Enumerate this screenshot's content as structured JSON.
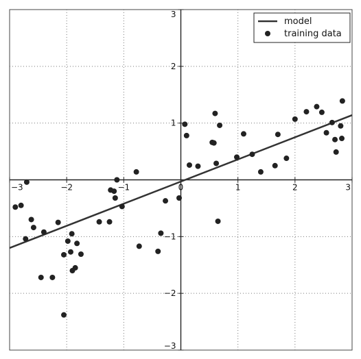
{
  "chart_data": {
    "type": "scatter",
    "title": "",
    "xlabel": "",
    "ylabel": "",
    "xlim": [
      -3,
      3
    ],
    "ylim": [
      -3,
      3
    ],
    "grid": true,
    "grid_style": "dotted",
    "spines": "centered",
    "x_ticks": [
      -3,
      -2,
      -1,
      0,
      1,
      2,
      3
    ],
    "y_ticks": [
      -3,
      -2,
      -1,
      0,
      1,
      2,
      3
    ],
    "x_tick_labels": [
      "−3",
      "−2",
      "−1",
      "0",
      "1",
      "2",
      "3"
    ],
    "y_tick_labels": [
      "−3",
      "−2",
      "−1",
      "",
      "1",
      "2",
      "3"
    ],
    "legend": {
      "position": "top-right",
      "entries": [
        {
          "label": "model",
          "type": "line"
        },
        {
          "label": "training data",
          "type": "marker"
        }
      ]
    },
    "series": [
      {
        "name": "model",
        "type": "line",
        "color": "#333333",
        "x": [
          -3,
          3
        ],
        "y": [
          -1.2,
          1.14
        ]
      },
      {
        "name": "training data",
        "type": "scatter",
        "color": "#222222",
        "points": [
          [
            -2.9,
            -0.48
          ],
          [
            -2.8,
            -0.45
          ],
          [
            -2.7,
            -0.04
          ],
          [
            -2.72,
            -1.04
          ],
          [
            -2.62,
            -0.7
          ],
          [
            -2.58,
            -0.84
          ],
          [
            -2.45,
            -1.72
          ],
          [
            -2.4,
            -0.92
          ],
          [
            -2.25,
            -1.72
          ],
          [
            -2.15,
            -0.75
          ],
          [
            -2.05,
            -1.32
          ],
          [
            -1.98,
            -1.08
          ],
          [
            -1.93,
            -1.27
          ],
          [
            -1.91,
            -0.95
          ],
          [
            -1.9,
            -1.6
          ],
          [
            -1.85,
            -1.55
          ],
          [
            -1.82,
            -1.12
          ],
          [
            -1.75,
            -1.31
          ],
          [
            -2.05,
            -2.38
          ],
          [
            -1.43,
            -0.74
          ],
          [
            -1.25,
            -0.74
          ],
          [
            -1.23,
            -0.18
          ],
          [
            -1.17,
            -0.2
          ],
          [
            -1.15,
            -0.32
          ],
          [
            -1.12,
            0.0
          ],
          [
            -1.03,
            -0.47
          ],
          [
            -0.78,
            0.14
          ],
          [
            -0.73,
            -1.17
          ],
          [
            -0.4,
            -1.26
          ],
          [
            -0.35,
            -0.94
          ],
          [
            -0.27,
            -0.37
          ],
          [
            -0.03,
            -0.32
          ],
          [
            0.07,
            0.98
          ],
          [
            0.1,
            0.78
          ],
          [
            0.15,
            0.26
          ],
          [
            0.3,
            0.24
          ],
          [
            0.55,
            0.66
          ],
          [
            0.58,
            0.65
          ],
          [
            0.6,
            1.17
          ],
          [
            0.62,
            0.29
          ],
          [
            0.65,
            -0.73
          ],
          [
            0.68,
            0.96
          ],
          [
            0.98,
            0.4
          ],
          [
            1.1,
            0.81
          ],
          [
            1.25,
            0.45
          ],
          [
            1.4,
            0.14
          ],
          [
            1.65,
            0.25
          ],
          [
            1.7,
            0.8
          ],
          [
            1.85,
            0.38
          ],
          [
            2.0,
            1.07
          ],
          [
            2.2,
            1.2
          ],
          [
            2.38,
            1.29
          ],
          [
            2.47,
            1.19
          ],
          [
            2.55,
            0.83
          ],
          [
            2.65,
            1.01
          ],
          [
            2.7,
            0.71
          ],
          [
            2.72,
            0.49
          ],
          [
            2.8,
            0.95
          ],
          [
            2.82,
            0.73
          ],
          [
            2.83,
            1.39
          ]
        ]
      }
    ]
  }
}
